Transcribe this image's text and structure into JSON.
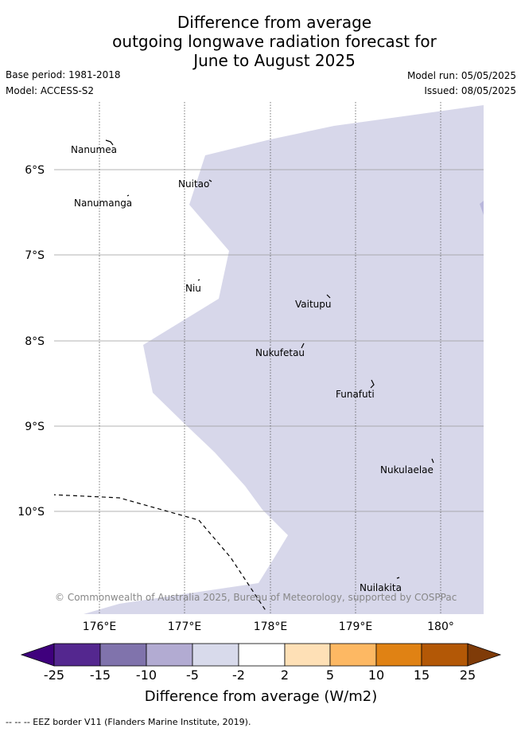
{
  "title": [
    "Difference from average",
    "outgoing longwave radiation forecast for",
    "June to August 2025"
  ],
  "meta": {
    "base_period": "Base period: 1981-2018",
    "model": "Model: ACCESS-S2",
    "model_run": "Model run: 05/05/2025",
    "issued": "Issued: 08/05/2025"
  },
  "map": {
    "lat_labels": [
      "6°S",
      "7°S",
      "8°S",
      "9°S",
      "10°S"
    ],
    "lon_labels": [
      "176°E",
      "177°E",
      "178°E",
      "179°E",
      "180°"
    ],
    "places": [
      {
        "name": "Nanumea"
      },
      {
        "name": "Nuitao"
      },
      {
        "name": "Nanumanga"
      },
      {
        "name": "Niu"
      },
      {
        "name": "Vaitupu"
      },
      {
        "name": "Nukufetau"
      },
      {
        "name": "Funafuti"
      },
      {
        "name": "Nukulaelae"
      },
      {
        "name": "Nuilakita"
      }
    ],
    "fill_color": "#d7d7ea",
    "copyright": "© Commonwealth of Australia 2025, Bureau of Meteorology, supported by COSPPac"
  },
  "colorbar": {
    "ticks": [
      "-25",
      "-15",
      "-10",
      "-5",
      "-2",
      "2",
      "5",
      "10",
      "15",
      "25"
    ],
    "colors": [
      "#3f007d",
      "#54278f",
      "#8073ac",
      "#b2abd2",
      "#d8daeb",
      "#ffffff",
      "#fee0b6",
      "#fdb863",
      "#e08214",
      "#b35806",
      "#7f3b08"
    ],
    "label": "Difference from average (W/m2)"
  },
  "footnote": "-- -- -- EEZ border V11 (Flanders Marine Institute, 2019)."
}
